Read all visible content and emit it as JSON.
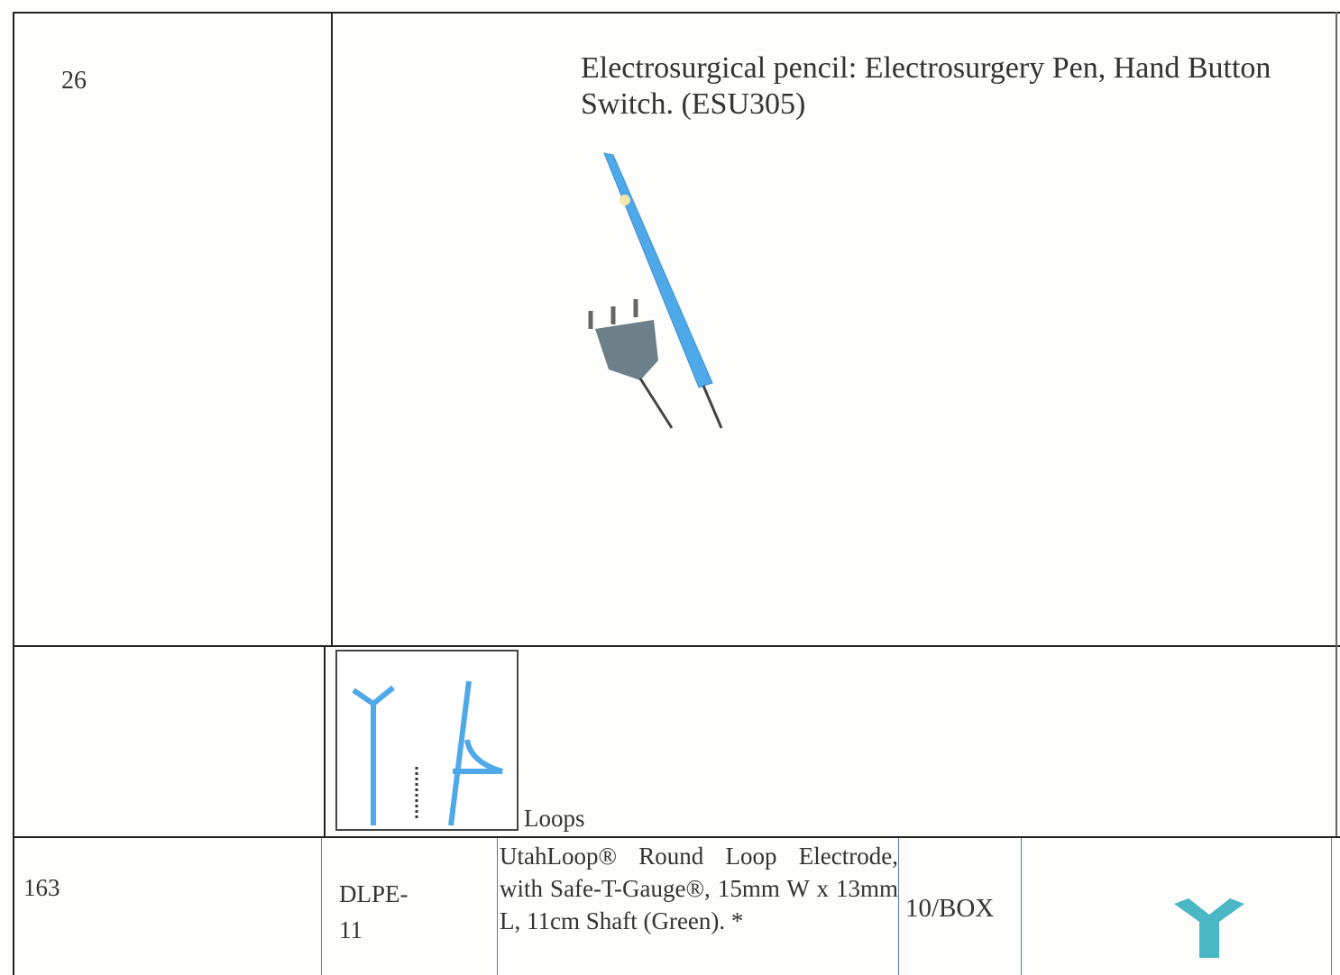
{
  "table": {
    "rows": [
      {
        "number": "26",
        "description": "Electrosurgical pencil: Electrosurgery Pen, Hand Button Switch. (ESU305)"
      },
      {
        "caption": "Loops"
      },
      {
        "number": "163",
        "code": "DLPE-11",
        "description": "UtahLoop® Round Loop Electrode, with Safe-T-Gauge®, 15mm W x 13mm L, 11cm Shaft (Green). *",
        "pack": "10/BOX"
      }
    ]
  }
}
